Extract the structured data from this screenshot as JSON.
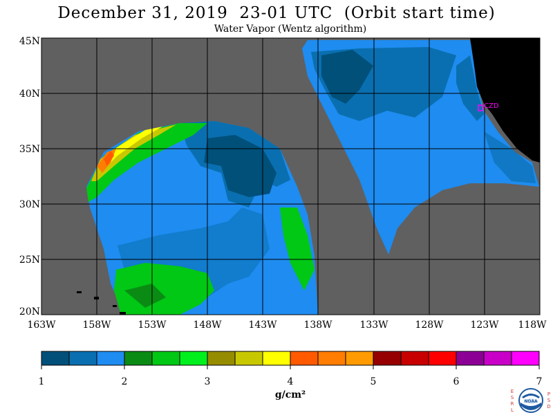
{
  "title": "December 31, 2019  23-01 UTC  (Orbit start time)",
  "subtitle": "Water Vapor (Wentz algorithm)",
  "station_label": "CZD",
  "lat_labels": [
    "45N",
    "40N",
    "35N",
    "30N",
    "25N",
    "20N"
  ],
  "lon_labels": [
    "163W",
    "158W",
    "153W",
    "148W",
    "143W",
    "138W",
    "133W",
    "128W",
    "123W",
    "118W"
  ],
  "colorbar": {
    "tick_labels": [
      "1",
      "2",
      "3",
      "4",
      "5",
      "6",
      "7"
    ],
    "unit": "g/cm²",
    "colors": [
      "#00507a",
      "#0a6fb0",
      "#1e8cf0",
      "#0a8c14",
      "#00c814",
      "#00f01e",
      "#968c00",
      "#c8c800",
      "#ffff00",
      "#ff5a00",
      "#ff7d00",
      "#ff9b00",
      "#960000",
      "#c80000",
      "#ff0000",
      "#8c0096",
      "#c800c8",
      "#ff00ff"
    ]
  },
  "map_colors": {
    "land": "#000000",
    "missing": "#606060",
    "grid": "#000000",
    "station": "#ff00ff"
  },
  "logo": {
    "left_letters": [
      "E",
      "S",
      "R",
      "L"
    ],
    "right_letters": [
      "P",
      "S",
      "D"
    ],
    "text": "NOAA"
  }
}
